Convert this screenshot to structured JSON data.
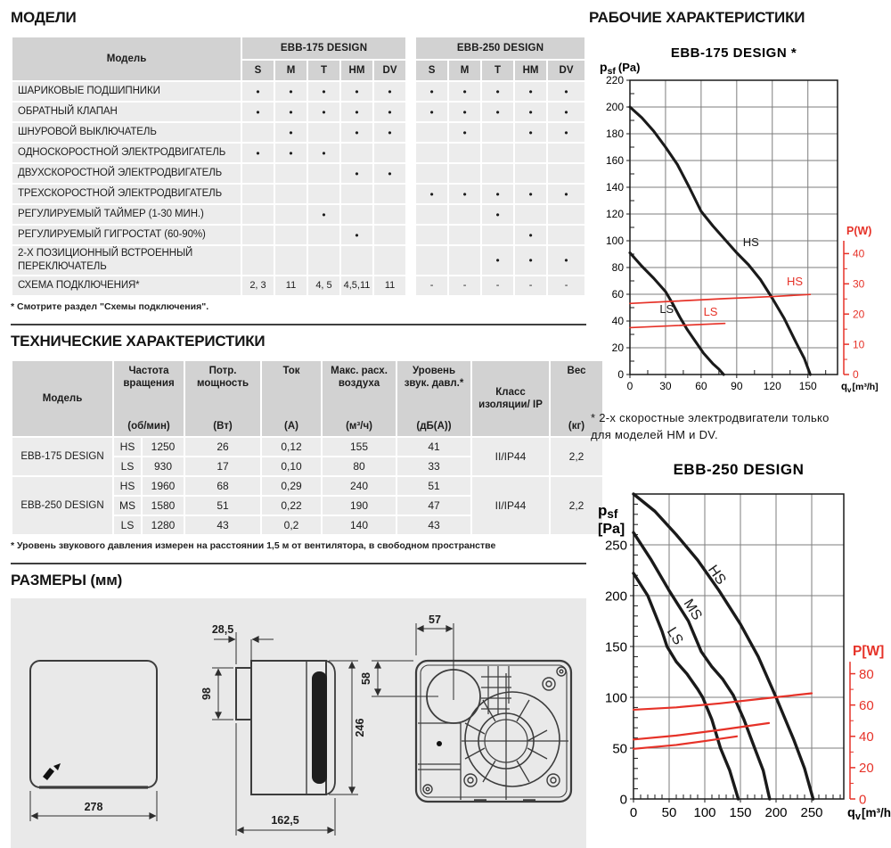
{
  "models": {
    "title": "МОДЕЛИ",
    "col_header": "Модель",
    "groups": [
      "EBB-175 DESIGN",
      "EBB-250 DESIGN"
    ],
    "variants": [
      "S",
      "M",
      "T",
      "HM",
      "DV"
    ],
    "rows": [
      {
        "label": "ШАРИКОВЫЕ ПОДШИПНИКИ",
        "cells": [
          "•",
          "•",
          "•",
          "•",
          "•",
          "•",
          "•",
          "•",
          "•",
          "•"
        ]
      },
      {
        "label": "ОБРАТНЫЙ КЛАПАН",
        "cells": [
          "•",
          "•",
          "•",
          "•",
          "•",
          "•",
          "•",
          "•",
          "•",
          "•"
        ]
      },
      {
        "label": "ШНУРОВОЙ ВЫКЛЮЧАТЕЛЬ",
        "cells": [
          "",
          "•",
          "",
          "•",
          "•",
          "",
          "•",
          "",
          "•",
          "•"
        ]
      },
      {
        "label": "ОДНОСКОРОСТНОЙ ЭЛЕКТРОДВИГАТЕЛЬ",
        "cells": [
          "•",
          "•",
          "•",
          "",
          "",
          "",
          "",
          "",
          "",
          ""
        ]
      },
      {
        "label": "ДВУХСКОРОСТНОЙ ЭЛЕКТРОДВИГАТЕЛЬ",
        "cells": [
          "",
          "",
          "",
          "•",
          "•",
          "",
          "",
          "",
          "",
          ""
        ]
      },
      {
        "label": "ТРЕХСКОРОСТНОЙ ЭЛЕКТРОДВИГАТЕЛЬ",
        "cells": [
          "",
          "",
          "",
          "",
          "",
          "•",
          "•",
          "•",
          "•",
          "•"
        ]
      },
      {
        "label": "РЕГУЛИРУЕМЫЙ ТАЙМЕР (1-30 МИН.)",
        "cells": [
          "",
          "",
          "•",
          "",
          "",
          "",
          "",
          "•",
          "",
          ""
        ]
      },
      {
        "label": "РЕГУЛИРУЕМЫЙ ГИГРОСТАТ (60-90%)",
        "cells": [
          "",
          "",
          "",
          "•",
          "",
          "",
          "",
          "",
          "•",
          ""
        ]
      },
      {
        "label": "2-Х ПОЗИЦИОННЫЙ ВСТРОЕННЫЙ ПЕРЕКЛЮЧАТЕЛЬ",
        "cells": [
          "",
          "",
          "",
          "",
          "",
          "",
          "",
          "•",
          "•",
          "•"
        ]
      },
      {
        "label": "СХЕМА ПОДКЛЮЧЕНИЯ*",
        "cells": [
          "2, 3",
          "11",
          "4, 5",
          "4,5,11",
          "11",
          "-",
          "-",
          "-",
          "-",
          "-"
        ]
      }
    ],
    "footnote": "* Смотрите раздел \"Схемы подключения\"."
  },
  "tech": {
    "title": "ТЕХНИЧЕСКИЕ ХАРАКТЕРИСТИКИ",
    "headers": [
      {
        "name": "Модель",
        "unit": ""
      },
      {
        "name": "Частота вращения",
        "unit": "(об/мин)"
      },
      {
        "name": "Потр. мощность",
        "unit": "(Вт)"
      },
      {
        "name": "Ток",
        "unit": "(А)"
      },
      {
        "name": "Макс. расх. воздуха",
        "unit": "(м³/ч)"
      },
      {
        "name": "Уровень звук. давл.*",
        "unit": "(дБ(А))"
      },
      {
        "name": "Класс изоляции/ IP",
        "unit": ""
      },
      {
        "name": "Вес",
        "unit": "(кг)"
      }
    ],
    "rows": [
      {
        "model": "EBB-175 DESIGN",
        "insulation": "II/IP44",
        "weight": "2,2",
        "speeds": [
          {
            "speed": "HS",
            "rpm": "1250",
            "power": "26",
            "current": "0,12",
            "airflow": "155",
            "noise": "41"
          },
          {
            "speed": "LS",
            "rpm": "930",
            "power": "17",
            "current": "0,10",
            "airflow": "80",
            "noise": "33"
          }
        ]
      },
      {
        "model": "EBB-250 DESIGN",
        "insulation": "II/IP44",
        "weight": "2,2",
        "speeds": [
          {
            "speed": "HS",
            "rpm": "1960",
            "power": "68",
            "current": "0,29",
            "airflow": "240",
            "noise": "51"
          },
          {
            "speed": "MS",
            "rpm": "1580",
            "power": "51",
            "current": "0,22",
            "airflow": "190",
            "noise": "47"
          },
          {
            "speed": "LS",
            "rpm": "1280",
            "power": "43",
            "current": "0,2",
            "airflow": "140",
            "noise": "43"
          }
        ]
      }
    ],
    "footnote": "* Уровень звукового давления измерен на расстоянии 1,5 м от вентилятора, в свободном пространстве"
  },
  "dimensions": {
    "title": "РАЗМЕРЫ (мм)",
    "values": {
      "front_width": "278",
      "spigot_length": "28,5",
      "spigot_height": "98",
      "height": "246",
      "depth": "162,5",
      "duct_offset_x": "57",
      "duct_offset_y": "58"
    }
  },
  "performance": {
    "title": "РАБОЧИЕ ХАРАКТЕРИСТИКИ",
    "footnote_line1": "* 2-х скоростные электродвигатели только",
    "footnote_line2": "для моделей HM и DV."
  },
  "chart_data": [
    {
      "type": "line",
      "title": "EBB-175 DESIGN *",
      "ylabel": {
        "main": "p",
        "sub": "sf",
        "rest": "(Pa)",
        "stacked": false
      },
      "xlabel": {
        "main": "q",
        "sub": "v",
        "rest": "[m³/h]"
      },
      "y2label": "P(W)",
      "accent": "#e63228",
      "x": {
        "min": 0,
        "max": 175,
        "grid": 30,
        "minor": 15,
        "labels": [
          0,
          30,
          60,
          90,
          120,
          150
        ]
      },
      "y": {
        "min": 0,
        "max": 220,
        "grid": 20,
        "minor": 10,
        "labels": [
          0,
          20,
          40,
          60,
          80,
          100,
          120,
          140,
          160,
          180,
          200,
          220
        ]
      },
      "y2": {
        "ticks": [
          0,
          10,
          20,
          30,
          40
        ],
        "minor": 5,
        "pa_per_unit": 2.26,
        "axis_top_pa": 100
      },
      "series": [
        {
          "name": "HS",
          "axis": "pa",
          "color": "#1a1a1a",
          "width": 3.1,
          "points": [
            [
              0,
              200
            ],
            [
              10,
              192
            ],
            [
              20,
              182
            ],
            [
              30,
              170
            ],
            [
              40,
              157
            ],
            [
              50,
              140
            ],
            [
              60,
              122
            ],
            [
              70,
              111
            ],
            [
              80,
              101
            ],
            [
              90,
              91
            ],
            [
              100,
              82
            ],
            [
              110,
              71
            ],
            [
              120,
              57
            ],
            [
              130,
              42
            ],
            [
              140,
              24
            ],
            [
              147,
              12
            ],
            [
              152,
              0
            ]
          ],
          "label": {
            "x": 102,
            "y": 96,
            "rotate": 0
          }
        },
        {
          "name": "LS",
          "axis": "pa",
          "color": "#1a1a1a",
          "width": 3.1,
          "points": [
            [
              0,
              91
            ],
            [
              10,
              81
            ],
            [
              20,
              72
            ],
            [
              30,
              62
            ],
            [
              36,
              53
            ],
            [
              42,
              43
            ],
            [
              48,
              34
            ],
            [
              55,
              25
            ],
            [
              62,
              16
            ],
            [
              70,
              8
            ],
            [
              75,
              4
            ],
            [
              79,
              0
            ]
          ],
          "label": {
            "x": 31,
            "y": 46,
            "rotate": 0
          }
        },
        {
          "name": "HS",
          "axis": "w",
          "color": "#e63228",
          "width": 1.7,
          "points": [
            [
              0,
              23.5
            ],
            [
              40,
              24.3
            ],
            [
              80,
              25.1
            ],
            [
              120,
              25.8
            ],
            [
              152,
              26.5
            ]
          ],
          "label": {
            "x": 139,
            "y": 29.5,
            "rotate": 0
          }
        },
        {
          "name": "LS",
          "axis": "w",
          "color": "#e63228",
          "width": 1.7,
          "points": [
            [
              0,
              15.5
            ],
            [
              40,
              16.2
            ],
            [
              80,
              16.9
            ]
          ],
          "label": {
            "x": 68,
            "y": 19.5,
            "rotate": 0
          }
        }
      ]
    },
    {
      "type": "line",
      "title": "EBB-250 DESIGN",
      "ylabel": {
        "main": "p",
        "sub": "sf",
        "rest": "[Pa]",
        "stacked": true
      },
      "xlabel": {
        "main": "q",
        "sub": "v",
        "rest": "[m³/h]"
      },
      "y2label": "P[W]",
      "accent": "#e63228",
      "x": {
        "min": 0,
        "max": 295,
        "grid": 50,
        "minor": 10,
        "labels": [
          0,
          50,
          100,
          150,
          200,
          250
        ]
      },
      "y": {
        "min": 0,
        "max": 300,
        "grid": 50,
        "minor": 10,
        "labels": [
          0,
          50,
          100,
          150,
          200,
          250
        ]
      },
      "y2": {
        "ticks": [
          0,
          20,
          40,
          60,
          80
        ],
        "minor": 10,
        "pa_per_unit": 1.54,
        "axis_top_pa": 135
      },
      "series": [
        {
          "name": "HS",
          "axis": "pa",
          "color": "#1a1a1a",
          "width": 3.4,
          "points": [
            [
              0,
              300
            ],
            [
              30,
              283
            ],
            [
              60,
              260
            ],
            [
              90,
              235
            ],
            [
              120,
              205
            ],
            [
              150,
              172
            ],
            [
              175,
              140
            ],
            [
              200,
              100
            ],
            [
              225,
              58
            ],
            [
              240,
              30
            ],
            [
              252,
              0
            ]
          ],
          "label": {
            "x": 112,
            "y": 218,
            "rotate": 55
          }
        },
        {
          "name": "MS",
          "axis": "pa",
          "color": "#1a1a1a",
          "width": 3.4,
          "points": [
            [
              0,
              262
            ],
            [
              25,
              235
            ],
            [
              50,
              205
            ],
            [
              77,
              175
            ],
            [
              95,
              145
            ],
            [
              110,
              130
            ],
            [
              125,
              118
            ],
            [
              140,
              102
            ],
            [
              155,
              78
            ],
            [
              170,
              50
            ],
            [
              182,
              28
            ],
            [
              191,
              0
            ]
          ],
          "label": {
            "x": 78,
            "y": 184,
            "rotate": 58
          }
        },
        {
          "name": "LS",
          "axis": "pa",
          "color": "#1a1a1a",
          "width": 3.4,
          "points": [
            [
              0,
              222
            ],
            [
              20,
              200
            ],
            [
              40,
              165
            ],
            [
              47,
              150
            ],
            [
              60,
              135
            ],
            [
              75,
              123
            ],
            [
              90,
              108
            ],
            [
              97,
              100
            ],
            [
              110,
              78
            ],
            [
              122,
              50
            ],
            [
              135,
              28
            ],
            [
              147,
              0
            ]
          ],
          "label": {
            "x": 53,
            "y": 158,
            "rotate": 58
          }
        },
        {
          "name": "HS",
          "axis": "w",
          "color": "#e63228",
          "width": 2.2,
          "points": [
            [
              0,
              57
            ],
            [
              60,
              58.5
            ],
            [
              120,
              61
            ],
            [
              180,
              64
            ],
            [
              250,
              67.5
            ]
          ]
        },
        {
          "name": "MS",
          "axis": "w",
          "color": "#e63228",
          "width": 2.2,
          "points": [
            [
              0,
              38
            ],
            [
              60,
              40.5
            ],
            [
              120,
              44
            ],
            [
              190,
              48.5
            ]
          ]
        },
        {
          "name": "LS",
          "axis": "w",
          "color": "#e63228",
          "width": 2.2,
          "points": [
            [
              0,
              32
            ],
            [
              60,
              34.5
            ],
            [
              100,
              37
            ],
            [
              145,
              40
            ]
          ]
        }
      ]
    }
  ]
}
